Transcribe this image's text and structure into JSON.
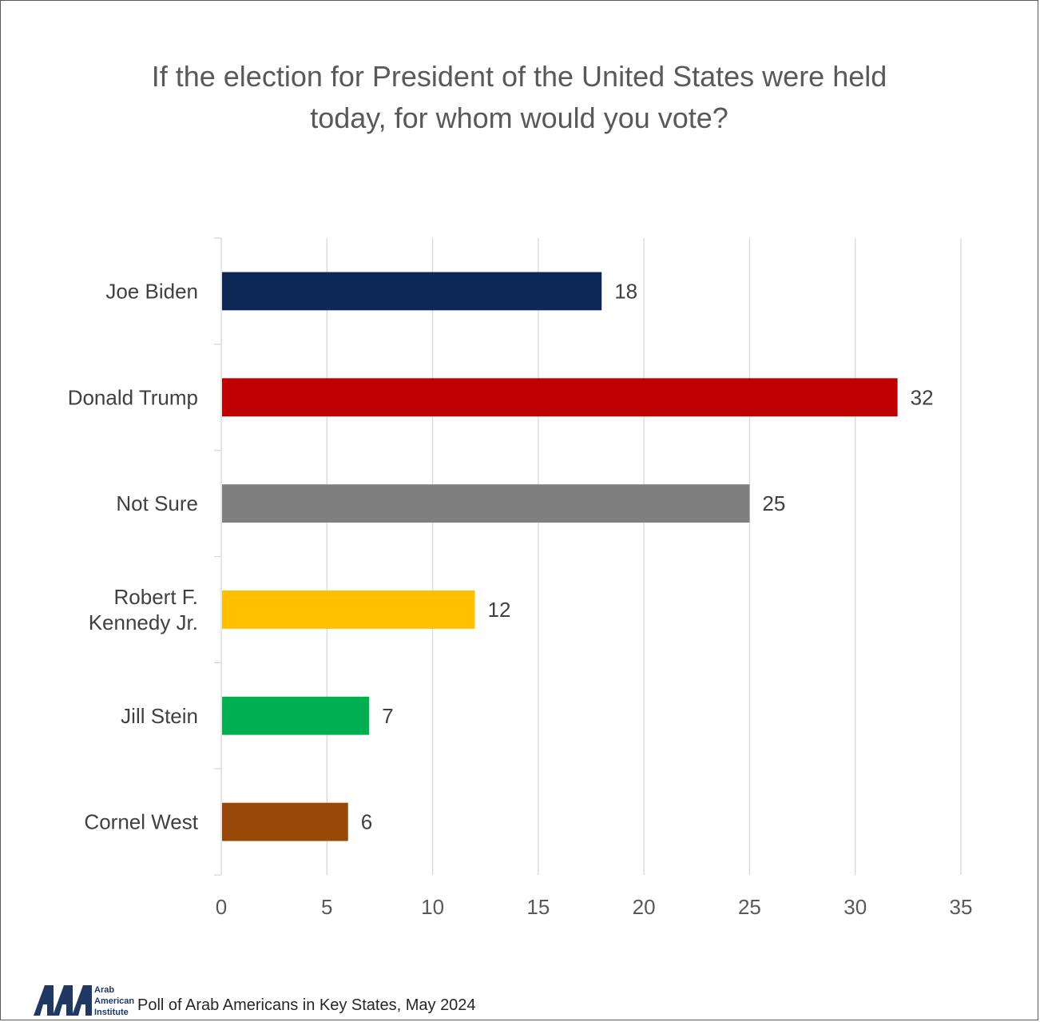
{
  "footer": {
    "org_name": "Arab American Institute",
    "logo_word1": "Arab",
    "logo_word2": "American",
    "logo_word3": "Institute",
    "source": "Poll of Arab Americans in Key States, May 2024"
  },
  "chart_data": {
    "type": "bar",
    "orientation": "horizontal",
    "title": "If the election for President of the United States were held today, for whom would you vote?",
    "title_lines": [
      "If the election for President of the United States were held",
      "today, for whom would you vote?"
    ],
    "xlabel": "",
    "ylabel": "",
    "categories": [
      [
        "Joe Biden"
      ],
      [
        "Donald Trump"
      ],
      [
        "Not Sure"
      ],
      [
        "Robert F.",
        "Kennedy Jr."
      ],
      [
        "Jill Stein"
      ],
      [
        "Cornel West"
      ]
    ],
    "values": [
      18,
      32,
      25,
      12,
      7,
      6
    ],
    "data_labels": [
      "18",
      "32",
      "25",
      "12",
      "7",
      "6"
    ],
    "colors": [
      "#0d2856",
      "#c00000",
      "#7f7f7f",
      "#ffc000",
      "#00b050",
      "#984807"
    ],
    "xlim": [
      0,
      35
    ],
    "x_ticks": [
      0,
      5,
      10,
      15,
      20,
      25,
      30,
      35
    ],
    "grid": "vertical",
    "legend": "none"
  }
}
